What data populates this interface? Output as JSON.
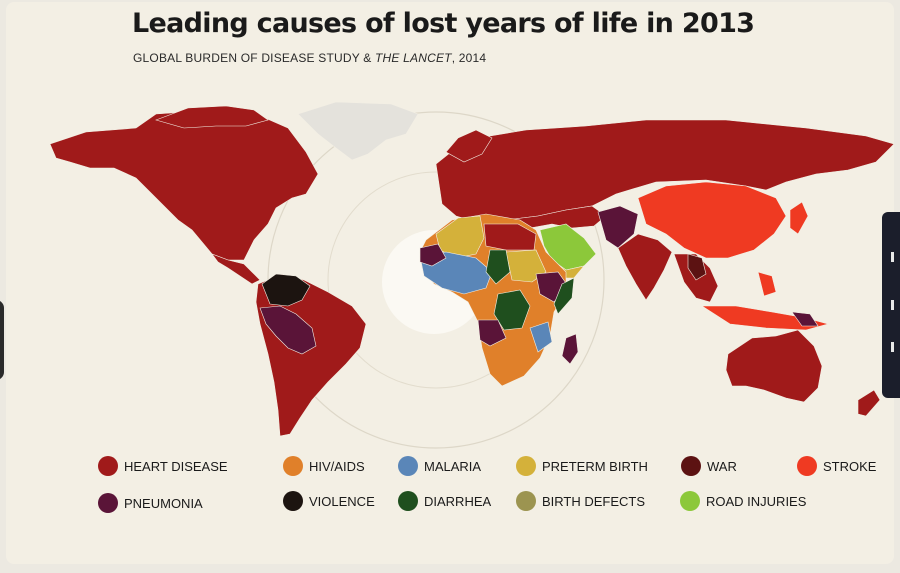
{
  "title": "Leading causes of lost years of life in 2013",
  "subtitle": {
    "prefix": "GLOBAL BURDEN OF DISEASE STUDY & ",
    "journal": "THE LANCET",
    "suffix": ", 2014"
  },
  "colors": {
    "heart_disease": "#a01a1a",
    "hiv_aids": "#e0802a",
    "malaria": "#5a86b8",
    "preterm_birth": "#d4b13a",
    "war": "#5c1212",
    "stroke": "#ef3a22",
    "pneumonia": "#5a1438",
    "violence": "#1c1410",
    "diarrhea": "#1f4f1e",
    "birth_defects": "#9c9450",
    "road_injuries": "#8cc83a",
    "no_data": "#e4e2dc"
  },
  "legend": [
    {
      "key": "heart_disease",
      "label": "HEART DISEASE"
    },
    {
      "key": "hiv_aids",
      "label": "HIV/AIDS"
    },
    {
      "key": "malaria",
      "label": "MALARIA"
    },
    {
      "key": "preterm_birth",
      "label": "PRETERM BIRTH"
    },
    {
      "key": "war",
      "label": "WAR"
    },
    {
      "key": "stroke",
      "label": "STROKE"
    },
    {
      "key": "pneumonia",
      "label": "PNEUMONIA"
    },
    {
      "key": "violence",
      "label": "VIOLENCE"
    },
    {
      "key": "diarrhea",
      "label": "DIARRHEA"
    },
    {
      "key": "birth_defects",
      "label": "BIRTH DEFECTS"
    },
    {
      "key": "road_injuries",
      "label": "ROAD INJURIES"
    }
  ]
}
